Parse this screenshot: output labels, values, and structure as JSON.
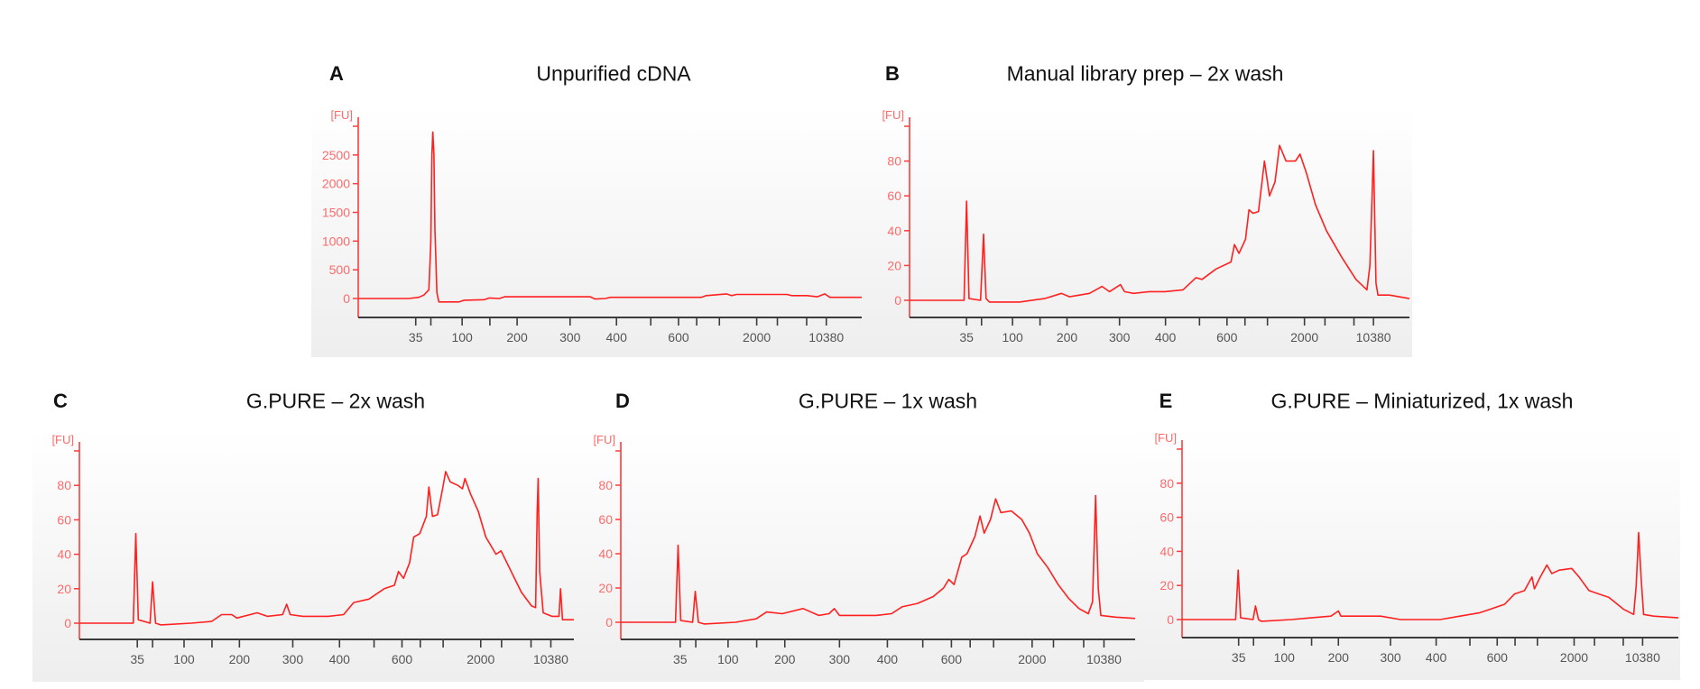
{
  "chart_data": [
    {
      "type": "line",
      "panel": "A",
      "title": "Unpurified cDNA",
      "ylabel": "[FU]",
      "xlabel": "",
      "ylim": [
        -300,
        3000
      ],
      "yticks": [
        0,
        500,
        1000,
        1500,
        2000,
        2500
      ],
      "x_unit": "relative migration (0-100)",
      "series": [
        {
          "name": "trace",
          "x": [
            0,
            10,
            12,
            13,
            14,
            14.4,
            14.6,
            14.8,
            15.0,
            15.2,
            15.6,
            16,
            20,
            21,
            25,
            26,
            28,
            29,
            40,
            46,
            47,
            49,
            50,
            68,
            69,
            73,
            74,
            75,
            85,
            86,
            89,
            91,
            92.5,
            93.5,
            100
          ],
          "y": [
            0,
            0,
            20,
            60,
            150,
            1000,
            2500,
            2900,
            2500,
            1200,
            100,
            -60,
            -60,
            -30,
            -20,
            10,
            0,
            30,
            30,
            30,
            -10,
            0,
            20,
            20,
            50,
            80,
            50,
            70,
            70,
            50,
            50,
            30,
            80,
            20,
            20
          ]
        }
      ]
    },
    {
      "type": "line",
      "panel": "B",
      "title": "Manual library prep – 2x wash",
      "ylabel": "[FU]",
      "xlabel": "",
      "ylim": [
        -10,
        100
      ],
      "yticks": [
        0,
        20,
        40,
        60,
        80
      ],
      "x_unit": "relative migration (0-100)",
      "series": [
        {
          "name": "trace",
          "x": [
            0,
            9,
            10.9,
            11.4,
            11.9,
            14.2,
            14.8,
            15.3,
            16,
            22,
            27,
            30.4,
            32,
            36,
            38.5,
            40,
            42.2,
            43,
            44.8,
            48,
            51,
            54.7,
            57.3,
            58.5,
            61.3,
            64.3,
            65,
            65.9,
            67.2,
            67.9,
            68.7,
            69.8,
            71,
            72,
            73.1,
            74,
            75.3,
            77.2,
            78.1,
            79.4,
            81.2,
            83.4,
            86.4,
            89.3,
            91.5,
            92.1,
            92.8,
            93.3,
            93.7,
            96,
            100
          ],
          "y": [
            0,
            0,
            0,
            57,
            1,
            0,
            38,
            1,
            -1,
            -1,
            1,
            4,
            2,
            4,
            8,
            5,
            9,
            5,
            4,
            5,
            5,
            6,
            13,
            12,
            18,
            22,
            32,
            27,
            35,
            52,
            50,
            51,
            80,
            60,
            68,
            89,
            80,
            80,
            84,
            73,
            55,
            40,
            25,
            12,
            6,
            20,
            86,
            10,
            3,
            3,
            1
          ]
        }
      ]
    },
    {
      "type": "line",
      "panel": "C",
      "title": "G.PURE – 2x wash",
      "ylabel": "[FU]",
      "xlabel": "",
      "ylim": [
        -10,
        100
      ],
      "yticks": [
        0,
        20,
        40,
        60,
        80
      ],
      "x_unit": "relative migration (0-100)",
      "series": [
        {
          "name": "trace",
          "x": [
            0,
            10.6,
            11.1,
            11.6,
            13.9,
            14.4,
            15,
            16,
            22,
            26,
            28,
            30,
            31,
            35,
            37,
            40,
            40.8,
            41.5,
            44,
            49,
            52,
            54,
            57,
            60,
            62,
            62.8,
            63.8,
            65,
            65.8,
            67,
            68.3,
            68.8,
            69.5,
            70.5,
            71.5,
            72.1,
            73,
            74.5,
            75.4,
            75.9,
            77,
            78.5,
            80,
            82,
            83,
            85,
            87,
            89,
            89.8,
            90.1,
            90.3,
            90.6,
            91.3,
            93,
            94.4,
            94.7,
            95.1,
            100
          ],
          "y": [
            0,
            0,
            52,
            2,
            0,
            24,
            0,
            -1,
            0,
            1,
            5,
            5,
            3,
            6,
            4,
            5,
            11,
            5,
            4,
            4,
            5,
            12,
            14,
            20,
            22,
            30,
            26,
            35,
            50,
            52,
            62,
            79,
            62,
            63,
            78,
            88,
            82,
            80,
            78,
            84,
            75,
            65,
            50,
            40,
            42,
            30,
            18,
            10,
            9,
            64,
            84,
            30,
            6,
            4,
            4,
            20,
            2,
            2
          ]
        }
      ]
    },
    {
      "type": "line",
      "panel": "D",
      "title": "G.PURE – 1x wash",
      "ylabel": "[FU]",
      "xlabel": "",
      "ylim": [
        -10,
        100
      ],
      "yticks": [
        0,
        20,
        40,
        60,
        80
      ],
      "x_unit": "relative migration (0-100)",
      "series": [
        {
          "name": "trace",
          "x": [
            0,
            10.5,
            11,
            11.5,
            13.8,
            14.3,
            14.9,
            16,
            22,
            26,
            28,
            31,
            35,
            38,
            40,
            41,
            42,
            44,
            49,
            52,
            54,
            57,
            60,
            62,
            63,
            64,
            65.5,
            66.5,
            68,
            69,
            69.8,
            71,
            72,
            73,
            75,
            77,
            78.5,
            80,
            82,
            84,
            86,
            88,
            89.8,
            90.6,
            91.2,
            91.7,
            92.2,
            95,
            100
          ],
          "y": [
            0,
            0,
            45,
            1,
            0,
            18,
            0,
            -1,
            0,
            2,
            6,
            5,
            8,
            4,
            5,
            8,
            4,
            4,
            4,
            5,
            9,
            11,
            15,
            20,
            25,
            22,
            38,
            40,
            50,
            62,
            52,
            60,
            72,
            64,
            65,
            60,
            52,
            40,
            32,
            22,
            14,
            8,
            5,
            12,
            74,
            20,
            4,
            3,
            2
          ]
        }
      ]
    },
    {
      "type": "line",
      "panel": "E",
      "title": "G.PURE – Miniaturized, 1x wash",
      "ylabel": "[FU]",
      "xlabel": "",
      "ylim": [
        -10,
        100
      ],
      "yticks": [
        0,
        20,
        40,
        60,
        80
      ],
      "x_unit": "relative migration (0-100)",
      "series": [
        {
          "name": "trace",
          "x": [
            0,
            10.8,
            11.3,
            11.8,
            14.3,
            14.8,
            15.4,
            16,
            22,
            26,
            30,
            31.5,
            32,
            40,
            44,
            49,
            52,
            56,
            60,
            62,
            65,
            67,
            69,
            70.5,
            71,
            72,
            73.5,
            74.5,
            76,
            78.5,
            80,
            82,
            86,
            89,
            91,
            91.5,
            92,
            92.5,
            93,
            95,
            100
          ],
          "y": [
            0,
            0,
            29,
            1,
            0,
            8,
            0,
            -1,
            0,
            1,
            2,
            5,
            2,
            2,
            0,
            0,
            0,
            2,
            4,
            6,
            9,
            15,
            17,
            25,
            18,
            24,
            32,
            27,
            29,
            30,
            25,
            17,
            13,
            6,
            3,
            20,
            51,
            24,
            3,
            2,
            1
          ]
        }
      ]
    }
  ],
  "x_ticks": {
    "positions": [
      11.4,
      14.4,
      20.6,
      26.1,
      31.5,
      42.0,
      51.2,
      58.0,
      63.5,
      67.1,
      71.6,
      79.0,
      83.1,
      88.9,
      92.8
    ],
    "labels": [
      "35",
      "",
      "100",
      "",
      "200",
      "300",
      "400",
      "",
      "600",
      "",
      "",
      "2000",
      "",
      "",
      "10380"
    ]
  },
  "panel_labels": [
    "A",
    "B",
    "C",
    "D",
    "E"
  ],
  "colors": {
    "trace": "#ff2020",
    "axis": "#ff3b3b",
    "ytext": "#ff6a6a",
    "xaxis": "#3c3c3c",
    "xtext": "#555555"
  }
}
